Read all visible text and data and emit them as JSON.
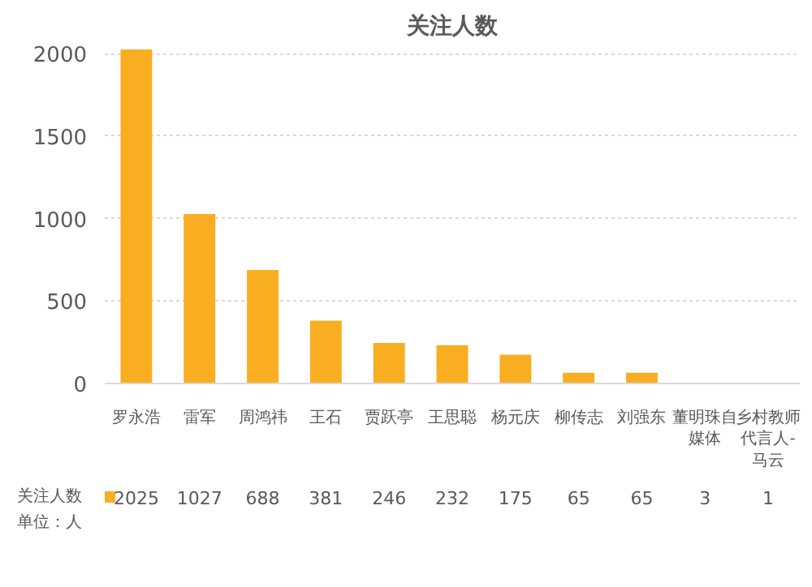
{
  "chart_data": {
    "type": "bar",
    "title": "关注人数",
    "categories": [
      "罗永浩",
      "雷军",
      "周鸿祎",
      "王石",
      "贾跃亭",
      "王思聪",
      "杨元庆",
      "柳传志",
      "刘强东",
      "董明珠自媒体",
      "乡村教师代言人-马云"
    ],
    "series": [
      {
        "name": "关注人数",
        "color": "#f9ae22",
        "values": [
          2025,
          1027,
          688,
          381,
          246,
          232,
          175,
          65,
          65,
          3,
          1
        ]
      }
    ],
    "ylim": [
      0,
      2025
    ],
    "yticks": [
      0,
      500,
      1000,
      1500,
      2000
    ],
    "grid": "y",
    "legend": "bottom",
    "data_labels": true,
    "annotations": [
      "单位：人"
    ]
  }
}
